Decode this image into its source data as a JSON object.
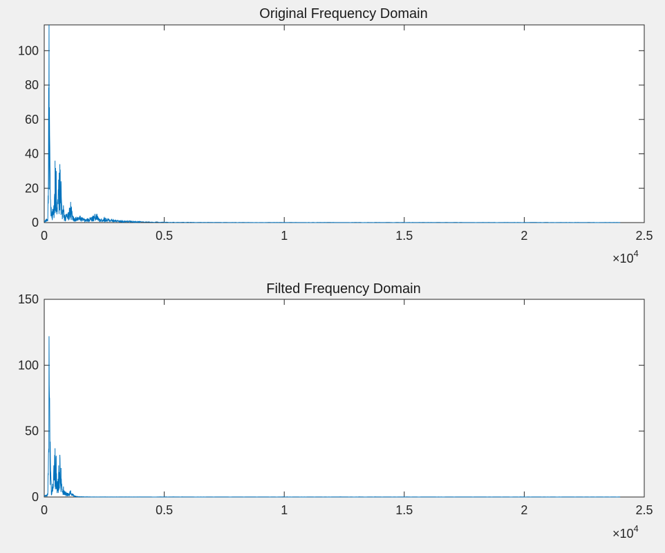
{
  "window": {
    "background": "#f0f0f0"
  },
  "chart_data": [
    {
      "type": "line",
      "title": "Original Frequency Domain",
      "xlabel": "",
      "ylabel": "",
      "xlim": [
        0,
        25000
      ],
      "ylim": [
        0,
        115
      ],
      "x_ticks": [
        0,
        5000,
        10000,
        15000,
        20000,
        25000
      ],
      "x_tick_labels": [
        "0",
        "0.5",
        "1",
        "1.5",
        "2",
        "2.5"
      ],
      "x_exponent_label": "×10",
      "x_exponent_power": "4",
      "y_ticks": [
        0,
        20,
        40,
        60,
        80,
        100
      ],
      "y_tick_labels": [
        "0",
        "20",
        "40",
        "60",
        "80",
        "100"
      ],
      "grid": false,
      "series_color": "#0072bd",
      "x_end": 24000,
      "series": [
        {
          "x": [
            0,
            150,
            200,
            250,
            300,
            350,
            400,
            450,
            500,
            550,
            600,
            650,
            700,
            750,
            800,
            850,
            900,
            1000,
            1100,
            1200,
            1300,
            1500,
            1700,
            1900,
            2100,
            2200,
            2300,
            2500,
            2800,
            3200,
            3600,
            4000,
            5000,
            6000,
            8000,
            10000,
            15000,
            20000,
            24000
          ],
          "values": [
            1,
            3,
            115,
            22,
            5,
            8,
            10,
            36,
            30,
            12,
            25,
            34,
            24,
            6,
            10,
            4,
            5,
            6,
            12,
            4,
            3,
            4,
            2,
            3,
            5,
            5,
            2,
            3,
            2,
            1,
            1,
            0.6,
            0.3,
            0.2,
            0.1,
            0.1,
            0.1,
            0.1,
            0.1
          ]
        }
      ]
    },
    {
      "type": "line",
      "title": "Filted Frequency Domain",
      "xlabel": "",
      "ylabel": "",
      "xlim": [
        0,
        25000
      ],
      "ylim": [
        0,
        150
      ],
      "x_ticks": [
        0,
        5000,
        10000,
        15000,
        20000,
        25000
      ],
      "x_tick_labels": [
        "0",
        "0.5",
        "1",
        "1.5",
        "2",
        "2.5"
      ],
      "x_exponent_label": "×10",
      "x_exponent_power": "4",
      "y_ticks": [
        0,
        50,
        100,
        150
      ],
      "y_tick_labels": [
        "0",
        "50",
        "100",
        "150"
      ],
      "grid": false,
      "series_color": "#0072bd",
      "x_end": 24000,
      "series": [
        {
          "x": [
            0,
            150,
            200,
            250,
            300,
            350,
            400,
            450,
            500,
            550,
            600,
            650,
            700,
            750,
            800,
            900,
            1000,
            1100,
            1200,
            1300,
            1400,
            2000,
            5000,
            10000,
            15000,
            20000,
            24000
          ],
          "values": [
            1,
            3,
            122,
            42,
            5,
            10,
            24,
            37,
            31,
            12,
            24,
            32,
            22,
            6,
            8,
            4,
            3,
            5,
            2,
            1,
            0.3,
            0.1,
            0.1,
            0.1,
            0.1,
            0.1,
            0.1
          ]
        }
      ]
    }
  ]
}
